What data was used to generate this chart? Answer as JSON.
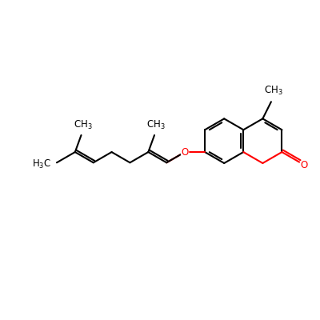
{
  "background": "#ffffff",
  "bond_color": "#000000",
  "oxygen_color": "#ff0000",
  "line_width": 1.5,
  "font_size": 8.5,
  "figsize": [
    4.0,
    4.0
  ],
  "dpi": 100
}
